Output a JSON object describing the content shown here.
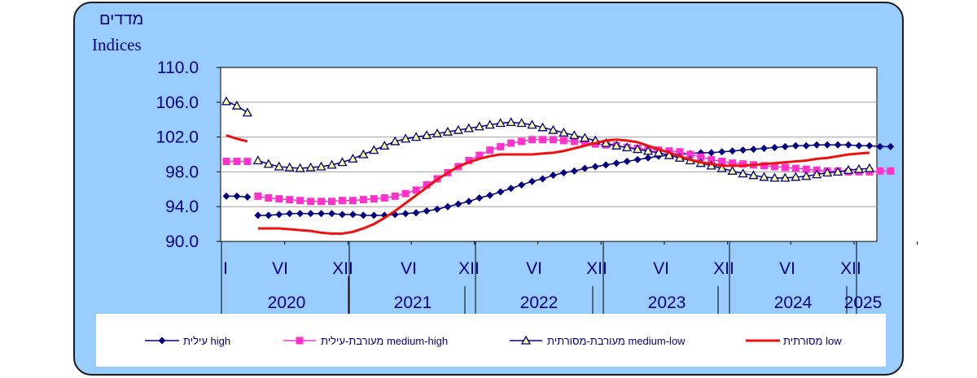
{
  "chart_data": {
    "type": "line",
    "ylabel_he": "מדדים",
    "ylabel_en": "Indices",
    "ylim": [
      90,
      110
    ],
    "yticks": [
      "110.0",
      "106.0",
      "102.0",
      "98.0",
      "94.0",
      "90.0"
    ],
    "month_labels": [
      "I",
      "VI",
      "XII",
      "VI",
      "XII",
      "VI",
      "XII",
      "VI",
      "XII",
      "VI",
      "XII"
    ],
    "years": [
      "2020",
      "2021",
      "2022",
      "2023",
      "2024",
      "2025"
    ],
    "series": [
      {
        "name": "עילית high",
        "color": "#000080",
        "marker": "diamond",
        "segments": [
          [
            95.2,
            95.2,
            95.1
          ],
          [
            93.0,
            93.0,
            93.1,
            93.2,
            93.2,
            93.2,
            93.2,
            93.2,
            93.1,
            93.1,
            93.0,
            93.0,
            93.0,
            93.1,
            93.2,
            93.3,
            93.5,
            93.7,
            94.0,
            94.3,
            94.6,
            95.0,
            95.3,
            95.7,
            96.1,
            96.5,
            96.9,
            97.2,
            97.6,
            97.9,
            98.1,
            98.4,
            98.6,
            98.8,
            99.0,
            99.2,
            99.4,
            99.6,
            99.8,
            99.9,
            100.0,
            100.1,
            100.2,
            100.2,
            100.3,
            100.4,
            100.5,
            100.6,
            100.7,
            100.8,
            100.9,
            101.0,
            101.0,
            101.1,
            101.1,
            101.1,
            101.1,
            101.0,
            101.0,
            100.9,
            100.9
          ]
        ]
      },
      {
        "name": "מעורבת-עילית medium-high",
        "color": "#ff33cc",
        "marker": "square",
        "segments": [
          [
            99.2,
            99.2,
            99.2
          ],
          [
            95.2,
            95.0,
            94.9,
            94.8,
            94.7,
            94.6,
            94.6,
            94.6,
            94.7,
            94.7,
            94.8,
            94.9,
            95.0,
            95.2,
            95.5,
            95.9,
            96.5,
            97.2,
            97.9,
            98.6,
            99.3,
            99.9,
            100.5,
            100.9,
            101.3,
            101.5,
            101.7,
            101.7,
            101.7,
            101.6,
            101.5,
            101.4,
            101.2,
            101.1,
            101.0,
            100.8,
            100.7,
            100.6,
            100.5,
            100.4,
            100.3,
            100.0,
            99.7,
            99.4,
            99.2,
            99.0,
            98.9,
            98.8,
            98.7,
            98.6,
            98.5,
            98.4,
            98.3,
            98.2,
            98.1,
            98.1,
            98.0,
            98.0,
            98.0,
            98.1,
            98.1
          ]
        ]
      },
      {
        "name": "מעורבת-מסורתית medium-low",
        "color": "#000080",
        "marker": "triangle",
        "segments": [
          [
            106.1,
            105.6,
            104.8
          ],
          [
            99.3,
            98.9,
            98.6,
            98.5,
            98.4,
            98.5,
            98.6,
            98.8,
            99.1,
            99.5,
            100.0,
            100.5,
            101.0,
            101.5,
            101.8,
            102.0,
            102.2,
            102.4,
            102.6,
            102.8,
            103.0,
            103.2,
            103.4,
            103.6,
            103.7,
            103.6,
            103.4,
            103.1,
            102.8,
            102.5,
            102.2,
            101.9,
            101.6,
            101.3,
            101.0,
            100.8,
            100.6,
            100.4,
            100.2,
            99.9,
            99.6,
            99.3,
            99.0,
            98.7,
            98.4,
            98.1,
            97.8,
            97.6,
            97.4,
            97.3,
            97.3,
            97.4,
            97.5,
            97.7,
            97.9,
            98.0,
            98.2,
            98.3,
            98.4
          ]
        ]
      },
      {
        "name": "מסורתית low",
        "color": "#ee1111",
        "marker": "none",
        "segments": [
          [
            102.2,
            101.8,
            101.5
          ],
          [
            91.5,
            91.5,
            91.5,
            91.4,
            91.3,
            91.2,
            91.0,
            90.9,
            90.9,
            91.1,
            91.5,
            92.0,
            92.7,
            93.5,
            94.4,
            95.3,
            96.2,
            97.1,
            97.9,
            98.6,
            99.1,
            99.5,
            99.8,
            100.0,
            100.0,
            100.0,
            100.0,
            100.1,
            100.2,
            100.4,
            100.7,
            101.0,
            101.3,
            101.6,
            101.7,
            101.6,
            101.4,
            101.0,
            100.6,
            100.2,
            99.8,
            99.4,
            99.1,
            98.9,
            98.7,
            98.7,
            98.7,
            98.8,
            98.9,
            99.0,
            99.1,
            99.2,
            99.3,
            99.5,
            99.6,
            99.8,
            100.0,
            100.1,
            100.2
          ]
        ]
      }
    ]
  }
}
